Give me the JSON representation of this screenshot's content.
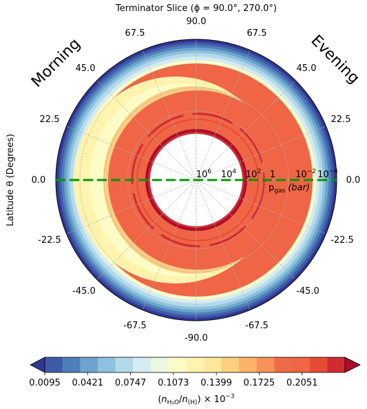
{
  "chart_data": {
    "type": "heatmap",
    "projection": "polar-half-disc",
    "title": "Terminator Slice (ϕ = 90.0°, 270.0°)",
    "side_labels": {
      "left": "Morning",
      "right": "Evening"
    },
    "ylabel": "Latitude θ (Degrees)",
    "latitude_ticks": {
      "top": "90.0",
      "bottom": "-90.0",
      "left": [
        "67.5",
        "45.0",
        "22.5",
        "0.0",
        "-22.5",
        "-45.0",
        "-67.5"
      ],
      "right": [
        "67.5",
        "45.0",
        "22.5",
        "0.0",
        "-22.5",
        "-45.0",
        "-67.5"
      ]
    },
    "pressure_ticks": [
      {
        "base": "10",
        "exp": "6",
        "value": 1000000
      },
      {
        "base": "10",
        "exp": "4",
        "value": 10000
      },
      {
        "base": "10",
        "exp": "2",
        "value": 100
      },
      {
        "base": "1",
        "exp": "",
        "value": 1
      },
      {
        "base": "10",
        "exp": "−2",
        "value": 0.01
      },
      {
        "base": "10",
        "exp": "−4",
        "value": 0.0001
      }
    ],
    "pressure_label_main": "p",
    "pressure_label_sub": "gas",
    "pressure_label_unit": "(bar)",
    "pressure_scale": "log",
    "terminator_line_color": "#009900",
    "colorbar": {
      "label": "(n_H2O / n_(H)) × 10⁻³",
      "tick_labels": [
        "0.0095",
        "0.0421",
        "0.0747",
        "0.1073",
        "0.1399",
        "0.1725",
        "0.2051"
      ],
      "tick_values": [
        0.0095,
        0.0421,
        0.0747,
        0.1073,
        0.1399,
        0.1725,
        0.2051
      ],
      "min": 0.0095,
      "max": 0.2377,
      "extend": "both",
      "colors": [
        "#313695",
        "#3f5ba8",
        "#4f7fba",
        "#6da4cd",
        "#8dc2de",
        "#b4daea",
        "#d4ecf2",
        "#ecf7df",
        "#fdfcc6",
        "#fff3ad",
        "#fee79b",
        "#fdcd80",
        "#fdb368",
        "#f8925a",
        "#ec6c49",
        "#ef6545",
        "#e64b35",
        "#cf2b30",
        "#ad0c2a"
      ]
    }
  }
}
